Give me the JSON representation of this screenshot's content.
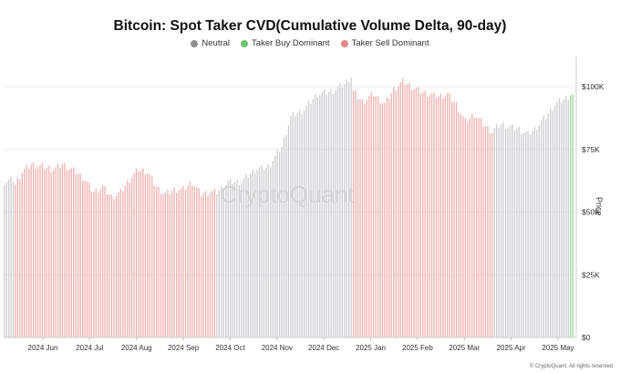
{
  "chart_data": {
    "type": "bar",
    "title": "Bitcoin: Spot Taker CVD(Cumulative Volume Delta, 90-day)",
    "ylabel": "Price",
    "ylim": [
      0,
      112000
    ],
    "y_ticks": [
      "$0",
      "$25K",
      "$50K",
      "$75K",
      "$100K"
    ],
    "y_tick_values": [
      0,
      25000,
      50000,
      75000,
      100000
    ],
    "x_ticks": [
      "2024 Jun",
      "2024 Jul",
      "2024 Aug",
      "2024 Sep",
      "2024 Oct",
      "2024 Nov",
      "2024 Dec",
      "2025 Jan",
      "2025 Feb",
      "2025 Mar",
      "2025 Apr",
      "2025 May"
    ],
    "legend": [
      {
        "name": "Neutral",
        "color": "#8f8f8f"
      },
      {
        "name": "Taker Buy Dominant",
        "color": "#6cc56c"
      },
      {
        "name": "Taker Sell Dominant",
        "color": "#e48585"
      }
    ],
    "watermark": "CryptoQuant",
    "credit": "© CryptoQuant. All rights reserved",
    "segment_colors": {
      "neutral": "#cfcfd3",
      "sell": "#f0b4b4",
      "buy": "#9fd89f"
    },
    "anchors": [
      [
        0,
        62000,
        "neutral"
      ],
      [
        4,
        63000,
        "neutral"
      ],
      [
        5,
        61000,
        "sell"
      ],
      [
        8,
        66000,
        "sell"
      ],
      [
        12,
        69000,
        "sell"
      ],
      [
        18,
        68000,
        "sell"
      ],
      [
        22,
        67000,
        "sell"
      ],
      [
        26,
        69000,
        "sell"
      ],
      [
        32,
        66000,
        "sell"
      ],
      [
        36,
        63000,
        "sell"
      ],
      [
        40,
        58000,
        "sell"
      ],
      [
        44,
        60000,
        "sell"
      ],
      [
        48,
        56000,
        "sell"
      ],
      [
        52,
        58000,
        "sell"
      ],
      [
        56,
        63000,
        "sell"
      ],
      [
        60,
        67000,
        "sell"
      ],
      [
        64,
        66000,
        "sell"
      ],
      [
        68,
        60000,
        "sell"
      ],
      [
        72,
        57000,
        "sell"
      ],
      [
        76,
        59000,
        "sell"
      ],
      [
        80,
        59000,
        "sell"
      ],
      [
        84,
        62000,
        "sell"
      ],
      [
        88,
        57000,
        "sell"
      ],
      [
        92,
        58000,
        "sell"
      ],
      [
        95,
        58000,
        "neutral"
      ],
      [
        100,
        62000,
        "neutral"
      ],
      [
        106,
        62000,
        "neutral"
      ],
      [
        112,
        67000,
        "neutral"
      ],
      [
        118,
        68000,
        "neutral"
      ],
      [
        124,
        76000,
        "neutral"
      ],
      [
        128,
        88000,
        "neutral"
      ],
      [
        134,
        91000,
        "neutral"
      ],
      [
        140,
        97000,
        "neutral"
      ],
      [
        146,
        98000,
        "neutral"
      ],
      [
        152,
        101000,
        "neutral"
      ],
      [
        155,
        104000,
        "neutral"
      ],
      [
        156,
        98000,
        "sell"
      ],
      [
        160,
        94000,
        "sell"
      ],
      [
        165,
        97000,
        "sell"
      ],
      [
        170,
        93000,
        "sell"
      ],
      [
        174,
        99000,
        "sell"
      ],
      [
        178,
        102000,
        "sell"
      ],
      [
        182,
        100000,
        "sell"
      ],
      [
        186,
        98000,
        "sell"
      ],
      [
        190,
        97000,
        "sell"
      ],
      [
        194,
        96000,
        "sell"
      ],
      [
        198,
        97000,
        "sell"
      ],
      [
        202,
        93000,
        "sell"
      ],
      [
        206,
        86000,
        "sell"
      ],
      [
        210,
        89000,
        "sell"
      ],
      [
        214,
        85000,
        "sell"
      ],
      [
        218,
        82000,
        "sell"
      ],
      [
        219,
        83000,
        "neutral"
      ],
      [
        222,
        85000,
        "neutral"
      ],
      [
        226,
        84000,
        "neutral"
      ],
      [
        230,
        83000,
        "neutral"
      ],
      [
        234,
        81000,
        "neutral"
      ],
      [
        238,
        84000,
        "neutral"
      ],
      [
        242,
        88000,
        "neutral"
      ],
      [
        246,
        93000,
        "neutral"
      ],
      [
        250,
        95000,
        "neutral"
      ],
      [
        252,
        96000,
        "neutral"
      ],
      [
        253,
        97000,
        "buy"
      ],
      [
        254,
        97000,
        "buy"
      ]
    ]
  }
}
